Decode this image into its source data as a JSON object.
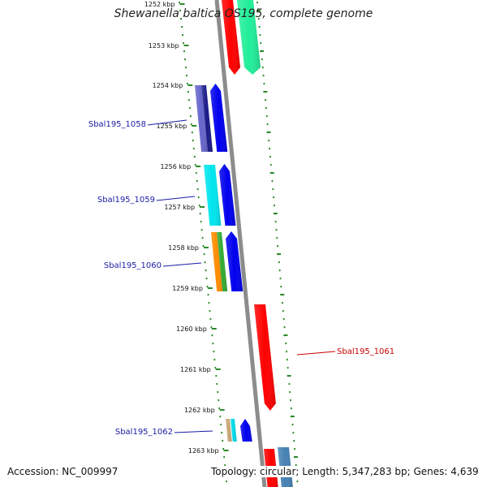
{
  "title": "Shewanella baltica OS195, complete genome",
  "footer": {
    "accession": "Accession: NC_009997",
    "info": "Topology: circular; Length: 5,347,283 bp; Genes: 4,639"
  },
  "colors": {
    "label_blue": "#1a1aa6",
    "label_red": "#cc0000",
    "backbone": "#8c8c8c",
    "dots": "#2a8a2a"
  },
  "kbp_ticks": [
    "1252 kbp",
    "1253 kbp",
    "1254 kbp",
    "1255 kbp",
    "1256 kbp",
    "1257 kbp",
    "1258 kbp",
    "1259 kbp",
    "1260 kbp",
    "1261 kbp",
    "1262 kbp",
    "1263 kbp"
  ],
  "gene_labels": [
    {
      "text": "Sbal195_1058",
      "color": "#1a1aa6"
    },
    {
      "text": "Sbal195_1059",
      "color": "#1a1aa6"
    },
    {
      "text": "Sbal195_1060",
      "color": "#1a1aa6"
    },
    {
      "text": "Sbal195_1061",
      "color": "#cc0000"
    },
    {
      "text": "Sbal195_1062",
      "color": "#1a1aa6"
    }
  ],
  "features": [
    {
      "color": "#ff0000",
      "direction": "reverse"
    },
    {
      "color": "#22ee99",
      "direction": "reverse"
    },
    {
      "color": "#6666cc",
      "direction": "none"
    },
    {
      "color": "#1a1a88",
      "direction": "none"
    },
    {
      "color": "#0000ee",
      "direction": "forward"
    },
    {
      "color": "#00e5ee",
      "direction": "none"
    },
    {
      "color": "#0000ee",
      "direction": "forward"
    },
    {
      "color": "#ff8c00",
      "direction": "none"
    },
    {
      "color": "#33aa33",
      "direction": "none"
    },
    {
      "color": "#0000ee",
      "direction": "forward"
    },
    {
      "color": "#ff0000",
      "direction": "reverse"
    },
    {
      "color": "#c8a878",
      "direction": "none"
    },
    {
      "color": "#00d8e8",
      "direction": "none"
    },
    {
      "color": "#0000ee",
      "direction": "forward"
    },
    {
      "color": "#ff0000",
      "direction": "none"
    },
    {
      "color": "#4682b4",
      "direction": "none"
    }
  ]
}
